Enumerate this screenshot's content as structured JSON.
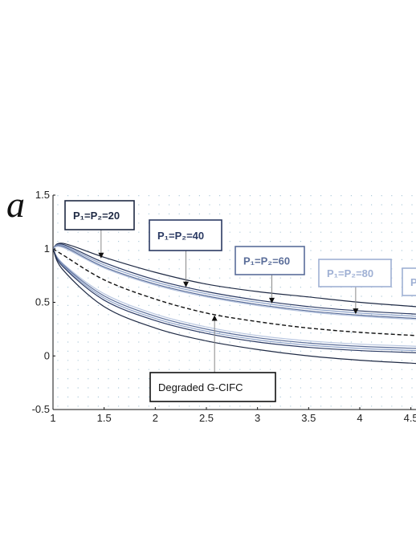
{
  "chart_data": {
    "type": "line",
    "title": "",
    "xlabel": "",
    "ylabel": "a",
    "xlim": [
      1,
      4.55
    ],
    "ylim": [
      -0.5,
      1.5
    ],
    "xticks": [
      "1",
      "1.5",
      "2",
      "2.5",
      "3",
      "3.5",
      "4",
      "4.5"
    ],
    "yticks": [
      "-0.5",
      "0",
      "0.5",
      "1",
      "1.5"
    ],
    "grid": true,
    "series": [
      {
        "group": "upper",
        "style": "solid",
        "color": "#1f2a44",
        "x": [
          1,
          1.1,
          1.5,
          2,
          2.5,
          3,
          3.5,
          4,
          4.55
        ],
        "y": [
          1.0,
          1.05,
          0.92,
          0.78,
          0.67,
          0.6,
          0.55,
          0.5,
          0.46
        ]
      },
      {
        "group": "upper",
        "style": "solid",
        "color": "#2b3a63",
        "x": [
          1,
          1.1,
          1.5,
          2,
          2.5,
          3,
          3.5,
          4,
          4.55
        ],
        "y": [
          1.0,
          1.04,
          0.87,
          0.71,
          0.6,
          0.52,
          0.46,
          0.42,
          0.39
        ]
      },
      {
        "group": "upper",
        "style": "solid",
        "color": "#8fa3c9",
        "x": [
          1,
          1.1,
          1.5,
          2,
          2.5,
          3,
          3.5,
          4,
          4.55
        ],
        "y": [
          1.0,
          1.03,
          0.85,
          0.69,
          0.58,
          0.5,
          0.44,
          0.4,
          0.37
        ]
      },
      {
        "group": "upper",
        "style": "solid",
        "color": "#5a6d99",
        "x": [
          1,
          1.1,
          1.5,
          2,
          2.5,
          3,
          3.5,
          4,
          4.55
        ],
        "y": [
          1.0,
          1.02,
          0.83,
          0.67,
          0.56,
          0.48,
          0.42,
          0.38,
          0.35
        ]
      },
      {
        "group": "upper",
        "style": "solid",
        "color": "#b8c6e0",
        "x": [
          1,
          1.1,
          1.5,
          2,
          2.5,
          3,
          3.5,
          4,
          4.55
        ],
        "y": [
          1.0,
          1.01,
          0.82,
          0.66,
          0.55,
          0.47,
          0.41,
          0.37,
          0.34
        ]
      },
      {
        "group": "degraded",
        "style": "dashed",
        "color": "#111111",
        "x": [
          1,
          1.1,
          1.5,
          2,
          2.5,
          3,
          3.5,
          4,
          4.55
        ],
        "y": [
          1.0,
          0.94,
          0.71,
          0.53,
          0.4,
          0.32,
          0.26,
          0.22,
          0.19
        ]
      },
      {
        "group": "lower",
        "style": "solid",
        "color": "#b8c6e0",
        "x": [
          1,
          1.1,
          1.5,
          2,
          2.5,
          3,
          3.5,
          4,
          4.55
        ],
        "y": [
          1.0,
          0.86,
          0.58,
          0.39,
          0.27,
          0.19,
          0.14,
          0.11,
          0.09
        ]
      },
      {
        "group": "lower",
        "style": "solid",
        "color": "#5a6d99",
        "x": [
          1,
          1.1,
          1.5,
          2,
          2.5,
          3,
          3.5,
          4,
          4.55
        ],
        "y": [
          1.0,
          0.85,
          0.56,
          0.37,
          0.25,
          0.17,
          0.12,
          0.09,
          0.07
        ]
      },
      {
        "group": "lower",
        "style": "solid",
        "color": "#8fa3c9",
        "x": [
          1,
          1.1,
          1.5,
          2,
          2.5,
          3,
          3.5,
          4,
          4.55
        ],
        "y": [
          1.0,
          0.84,
          0.54,
          0.35,
          0.23,
          0.15,
          0.1,
          0.07,
          0.05
        ]
      },
      {
        "group": "lower",
        "style": "solid",
        "color": "#2b3a63",
        "x": [
          1,
          1.1,
          1.5,
          2,
          2.5,
          3,
          3.5,
          4,
          4.55
        ],
        "y": [
          1.0,
          0.83,
          0.52,
          0.33,
          0.21,
          0.13,
          0.08,
          0.05,
          0.03
        ]
      },
      {
        "group": "lower",
        "style": "solid",
        "color": "#1f2a44",
        "x": [
          1,
          1.1,
          1.5,
          2,
          2.5,
          3,
          3.5,
          4,
          4.55
        ],
        "y": [
          1.0,
          0.8,
          0.46,
          0.26,
          0.14,
          0.06,
          0.0,
          -0.04,
          -0.07
        ]
      }
    ],
    "annotations": [
      {
        "label": "P₁=P₂=20",
        "color": "#1f2a44",
        "arrow_to": [
          1.47,
          0.91
        ]
      },
      {
        "label": "P₁=P₂=40",
        "color": "#2b3a63",
        "arrow_to": [
          2.3,
          0.64
        ]
      },
      {
        "label": "P₁=P₂=60",
        "color": "#5a6d99",
        "arrow_to": [
          3.14,
          0.49
        ]
      },
      {
        "label": "P₁=P₂=80",
        "color": "#9fb0d4",
        "arrow_to": [
          3.96,
          0.39
        ]
      },
      {
        "label": "P",
        "color": "#9fb0d4",
        "arrow_to": null
      },
      {
        "label": "Degraded   G-CIFC",
        "color": "#111111",
        "arrow_to": [
          2.58,
          0.38
        ]
      }
    ]
  }
}
